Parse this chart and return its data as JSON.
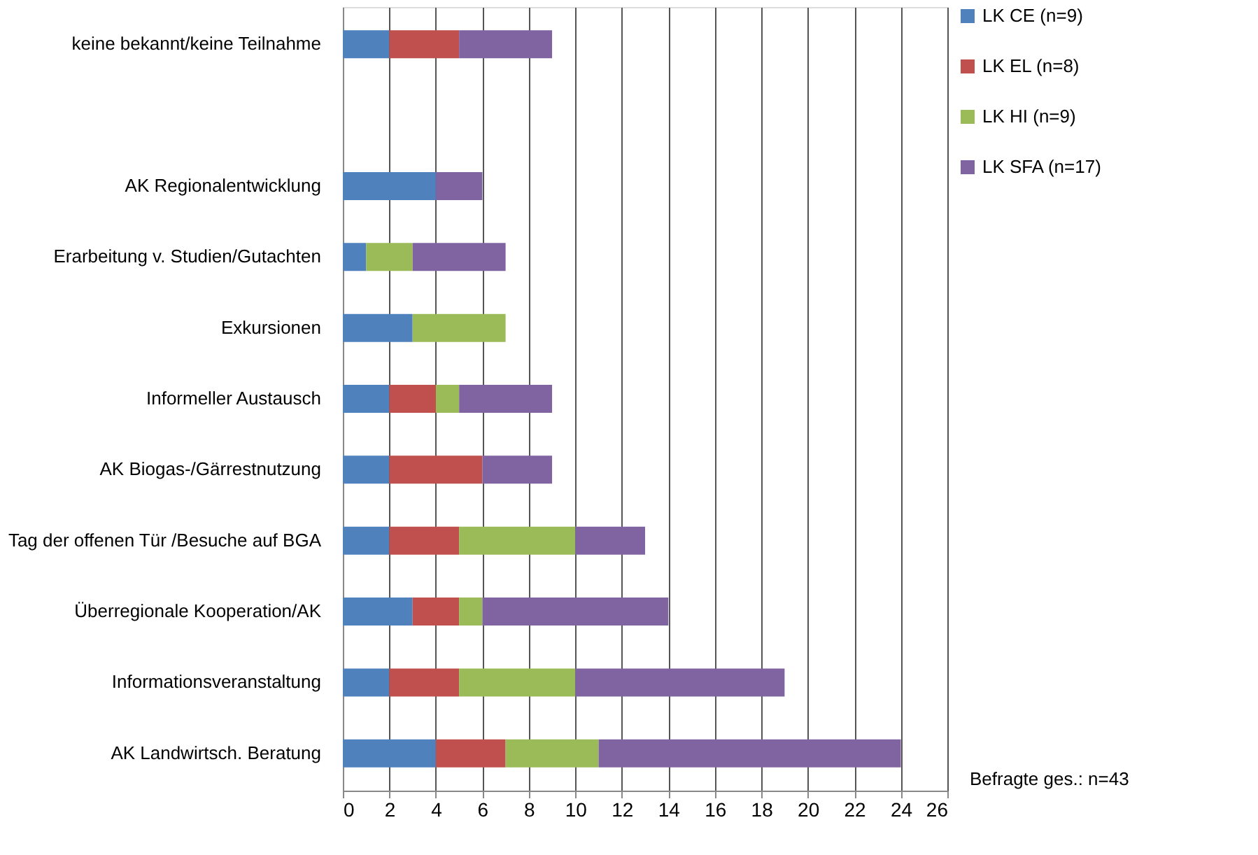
{
  "chart_data": {
    "type": "bar",
    "orientation": "horizontal",
    "stacked": true,
    "categories": [
      "keine bekannt/keine Teilnahme",
      null,
      "AK Regionalentwicklung",
      "Erarbeitung v. Studien/Gutachten",
      "Exkursionen",
      "Informeller Austausch",
      "AK Biogas-/Gärrestnutzung",
      "Tag der offenen Tür /Besuche auf BGA",
      "Überregionale Kooperation/AK",
      "Informationsveranstaltung",
      "AK Landwirtsch. Beratung"
    ],
    "series": [
      {
        "name": "LK CE (n=9)",
        "color": "#4f81bd",
        "values": [
          2,
          null,
          4,
          1,
          3,
          2,
          2,
          2,
          3,
          2,
          4
        ]
      },
      {
        "name": "LK EL (n=8)",
        "color": "#c0504d",
        "values": [
          3,
          null,
          0,
          0,
          0,
          2,
          4,
          3,
          2,
          3,
          3
        ]
      },
      {
        "name": "LK HI (n=9)",
        "color": "#9bbb59",
        "values": [
          0,
          null,
          0,
          2,
          4,
          1,
          0,
          5,
          1,
          5,
          4
        ]
      },
      {
        "name": "LK SFA (n=17)",
        "color": "#8064a2",
        "values": [
          4,
          null,
          2,
          4,
          0,
          4,
          3,
          3,
          8,
          9,
          13
        ]
      }
    ],
    "xlim": [
      0,
      26
    ],
    "xticks": [
      0,
      2,
      4,
      6,
      8,
      10,
      12,
      14,
      16,
      18,
      20,
      22,
      24,
      26
    ],
    "grid": "x",
    "legend": "right",
    "annotations": [
      "Befragte ges.: n=43"
    ]
  }
}
